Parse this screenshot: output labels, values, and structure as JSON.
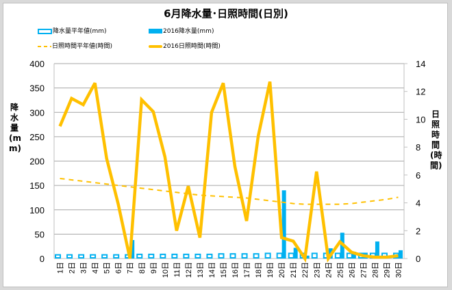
{
  "chart_data": {
    "type": "bar+line",
    "title": "6月降水量･日照時間(日別)",
    "ylabel": "降水量(mm)",
    "y2label": "日照時間(時間)",
    "ylim": [
      0,
      400
    ],
    "y2lim": [
      0,
      14
    ],
    "yticks": [
      "0",
      "50",
      "100",
      "150",
      "200",
      "250",
      "300",
      "350",
      "400"
    ],
    "y2ticks": [
      "0",
      "2",
      "4",
      "6",
      "8",
      "10",
      "12",
      "14"
    ],
    "categories": [
      "1日",
      "2日",
      "3日",
      "4日",
      "5日",
      "6日",
      "7日",
      "8日",
      "9日",
      "10日",
      "11日",
      "12日",
      "13日",
      "14日",
      "15日",
      "16日",
      "17日",
      "18日",
      "19日",
      "20日",
      "21日",
      "22日",
      "23日",
      "24日",
      "25日",
      "26日",
      "27日",
      "28日",
      "29日",
      "30日"
    ],
    "grid": true,
    "legend_position": "top-left",
    "series": [
      {
        "name": "降水量平年値(mm)",
        "type": "bar-outline",
        "axis": "left",
        "color": "#00b0f0",
        "values": [
          9,
          9,
          9,
          9,
          9,
          9,
          9,
          10,
          10,
          10,
          10,
          10,
          10,
          10,
          11,
          11,
          11,
          11,
          12,
          12,
          12,
          12,
          12,
          12,
          12,
          12,
          12,
          12,
          12,
          12
        ]
      },
      {
        "name": "2016降水量(mm)",
        "type": "bar",
        "axis": "left",
        "color": "#00b0f0",
        "values": [
          0,
          0,
          0,
          0,
          0,
          0,
          38,
          0,
          0,
          0,
          0,
          0,
          0,
          0,
          0,
          0,
          0,
          0,
          0,
          140,
          22,
          6,
          0,
          21,
          53,
          14,
          12,
          35,
          0,
          17
        ]
      },
      {
        "name": "日照時間平年値(時間)",
        "type": "line-dashed",
        "axis": "right",
        "color": "#ffc000",
        "values": [
          5.75,
          5.65,
          5.55,
          5.45,
          5.35,
          5.25,
          5.15,
          5.05,
          4.95,
          4.85,
          4.75,
          4.65,
          4.55,
          4.5,
          4.45,
          4.4,
          4.35,
          4.25,
          4.15,
          4.05,
          3.95,
          3.9,
          3.9,
          3.9,
          3.9,
          3.95,
          4.05,
          4.15,
          4.25,
          4.4
        ]
      },
      {
        "name": "2016日照時間(時間)",
        "type": "line",
        "axis": "right",
        "color": "#ffc000",
        "values": [
          9.5,
          11.5,
          11.05,
          12.6,
          7.2,
          3.9,
          0,
          11.4,
          10.55,
          7.3,
          2.0,
          5.2,
          1.5,
          10.5,
          12.6,
          6.6,
          2.7,
          8.8,
          12.7,
          1.5,
          1.25,
          0,
          6.25,
          0,
          1.2,
          0.45,
          0.2,
          0.1,
          0.1,
          0.2
        ]
      }
    ]
  }
}
